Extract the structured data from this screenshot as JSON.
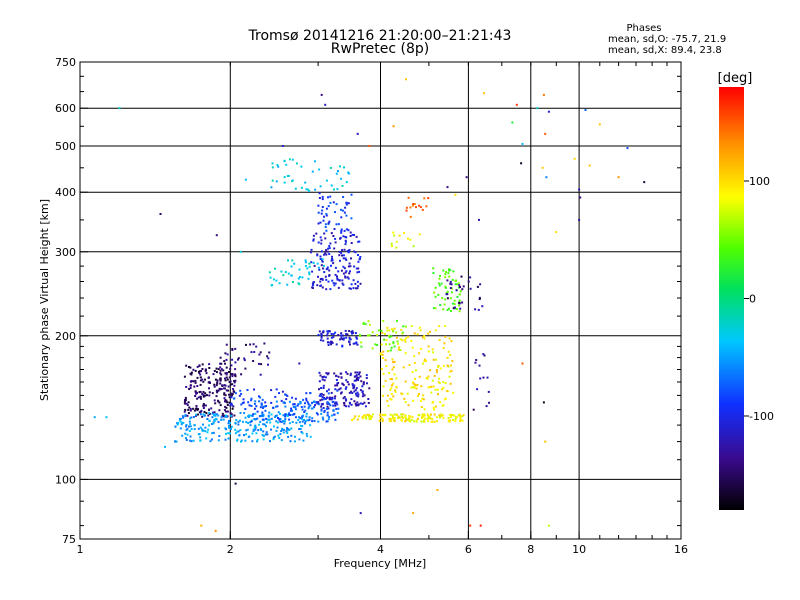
{
  "chart_data": {
    "type": "scatter",
    "title": "Tromsø 20141216 21:20:00–21:21:43",
    "subtitle": "RwPretec (8p)",
    "xlabel": "Frequency [MHz]",
    "ylabel": "Stationary phase Virtual Height [km]",
    "x_scale": "log",
    "y_scale": "log",
    "xlim": [
      1,
      16
    ],
    "ylim": [
      75,
      750
    ],
    "x_ticks": [
      1,
      2,
      4,
      6,
      8,
      10,
      16
    ],
    "x_tick_labels": [
      "1",
      "2",
      "4",
      "6",
      "8",
      "10",
      "16"
    ],
    "y_ticks": [
      75,
      100,
      200,
      300,
      400,
      500,
      600,
      750
    ],
    "y_tick_labels": [
      "75",
      "100",
      "200",
      "300",
      "400",
      "500",
      "600",
      "750"
    ],
    "grid": true,
    "stats": {
      "heading": "Phases",
      "line_o": "mean, sd,O: -75.7, 21.9",
      "line_x": "mean, sd,X:  89.4, 23.8"
    },
    "colorbar": {
      "label": "[deg]",
      "range": [
        -180,
        180
      ],
      "ticks": [
        100,
        0,
        -100
      ],
      "tick_labels": [
        "100",
        "0",
        "-100"
      ]
    },
    "clusters": [
      {
        "f": [
          1.62,
          2.05
        ],
        "h": [
          135,
          175
        ],
        "phase": -150,
        "n": 230
      },
      {
        "f": [
          1.55,
          2.9
        ],
        "h": [
          120,
          138
        ],
        "phase": -50,
        "n": 260
      },
      {
        "f": [
          2.2,
          3.3
        ],
        "h": [
          132,
          146
        ],
        "phase": -70,
        "n": 130
      },
      {
        "f": [
          3.0,
          3.8
        ],
        "h": [
          142,
          168
        ],
        "phase": -120,
        "n": 150
      },
      {
        "f": [
          3.0,
          3.6
        ],
        "h": [
          190,
          205
        ],
        "phase": -110,
        "n": 70
      },
      {
        "f": [
          3.5,
          5.9
        ],
        "h": [
          132,
          137
        ],
        "phase": 90,
        "n": 140
      },
      {
        "f": [
          4.0,
          5.6
        ],
        "h": [
          140,
          210
        ],
        "phase": 95,
        "n": 180
      },
      {
        "f": [
          3.6,
          4.5
        ],
        "h": [
          185,
          215
        ],
        "phase": 50,
        "n": 40
      },
      {
        "f": [
          2.9,
          3.65
        ],
        "h": [
          250,
          330
        ],
        "phase": -110,
        "n": 160
      },
      {
        "f": [
          3.0,
          3.5
        ],
        "h": [
          330,
          400
        ],
        "phase": -90,
        "n": 50
      },
      {
        "f": [
          2.4,
          3.1
        ],
        "h": [
          255,
          290
        ],
        "phase": -25,
        "n": 40
      },
      {
        "f": [
          2.4,
          3.5
        ],
        "h": [
          400,
          470
        ],
        "phase": -30,
        "n": 45
      },
      {
        "f": [
          5.1,
          5.8
        ],
        "h": [
          225,
          280
        ],
        "phase": 40,
        "n": 60
      },
      {
        "f": [
          5.4,
          6.4
        ],
        "h": [
          225,
          270
        ],
        "phase": -140,
        "n": 30
      },
      {
        "f": [
          4.2,
          4.8
        ],
        "h": [
          300,
          330
        ],
        "phase": 80,
        "n": 12
      },
      {
        "f": [
          4.5,
          5.0
        ],
        "h": [
          365,
          390
        ],
        "phase": 150,
        "n": 14
      },
      {
        "f": [
          6.1,
          6.7
        ],
        "h": [
          140,
          185
        ],
        "phase": -130,
        "n": 12
      },
      {
        "f": [
          2.0,
          3.3
        ],
        "h": [
          140,
          155
        ],
        "phase": -90,
        "n": 70
      },
      {
        "f": [
          1.9,
          2.4
        ],
        "h": [
          165,
          195
        ],
        "phase": -140,
        "n": 40
      }
    ],
    "scattered_points": [
      [
        1.07,
        135,
        -45
      ],
      [
        1.13,
        135,
        -40
      ],
      [
        1.2,
        600,
        -20
      ],
      [
        1.45,
        360,
        -150
      ],
      [
        1.48,
        117,
        -40
      ],
      [
        1.55,
        120,
        -55
      ],
      [
        1.88,
        325,
        -140
      ],
      [
        1.75,
        80,
        120
      ],
      [
        1.87,
        78,
        130
      ],
      [
        2.05,
        98,
        -160
      ],
      [
        2.35,
        145,
        -100
      ],
      [
        2.15,
        425,
        -40
      ],
      [
        2.1,
        300,
        -30
      ],
      [
        2.55,
        500,
        -110
      ],
      [
        2.75,
        175,
        -120
      ],
      [
        3.05,
        640,
        -140
      ],
      [
        3.1,
        610,
        -110
      ],
      [
        3.6,
        530,
        -120
      ],
      [
        3.65,
        85,
        -120
      ],
      [
        3.8,
        500,
        150
      ],
      [
        4.5,
        690,
        110
      ],
      [
        4.65,
        85,
        120
      ],
      [
        5.45,
        410,
        -140
      ],
      [
        5.65,
        395,
        100
      ],
      [
        5.95,
        430,
        -140
      ],
      [
        6.05,
        80,
        160
      ],
      [
        6.15,
        140,
        -150
      ],
      [
        6.3,
        350,
        -120
      ],
      [
        6.45,
        645,
        110
      ],
      [
        7.35,
        560,
        20
      ],
      [
        7.5,
        610,
        160
      ],
      [
        7.65,
        460,
        -170
      ],
      [
        7.7,
        175,
        150
      ],
      [
        7.7,
        505,
        -40
      ],
      [
        8.25,
        600,
        -20
      ],
      [
        8.5,
        640,
        140
      ],
      [
        8.55,
        530,
        150
      ],
      [
        8.7,
        590,
        -110
      ],
      [
        8.45,
        450,
        110
      ],
      [
        8.6,
        430,
        -60
      ],
      [
        8.55,
        120,
        110
      ],
      [
        8.5,
        145,
        -170
      ],
      [
        8.7,
        80,
        70
      ],
      [
        9.0,
        330,
        100
      ],
      [
        9.8,
        470,
        100
      ],
      [
        10.0,
        405,
        -120
      ],
      [
        10.05,
        390,
        -140
      ],
      [
        10.0,
        350,
        -130
      ],
      [
        10.3,
        595,
        -70
      ],
      [
        10.5,
        455,
        110
      ],
      [
        11.0,
        555,
        110
      ],
      [
        12.0,
        430,
        130
      ],
      [
        12.5,
        495,
        -80
      ],
      [
        13.5,
        420,
        -160
      ],
      [
        4.25,
        550,
        130
      ],
      [
        4.6,
        355,
        140
      ],
      [
        5.2,
        95,
        120
      ],
      [
        6.35,
        80,
        170
      ]
    ]
  }
}
